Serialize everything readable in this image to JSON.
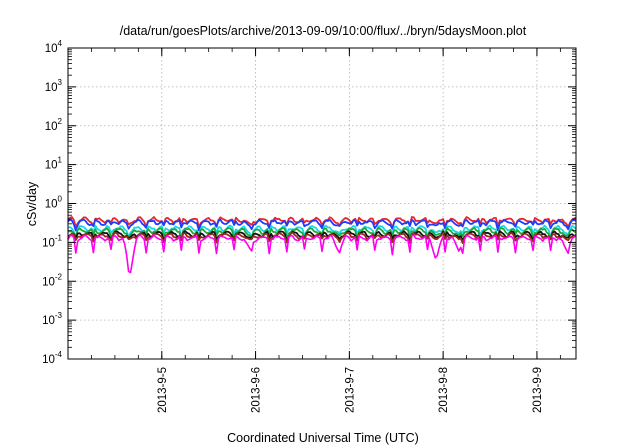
{
  "chart_data": {
    "type": "line",
    "title": "/data/run/goesPlots/archive/2013-09-09/10:00/flux/../bryn/5daysMoon.plot",
    "xlabel": "Coordinated Universal Time (UTC)",
    "ylabel": "cSv/day",
    "yscale": "log",
    "ylim": [
      0.0001,
      10000
    ],
    "xlim": [
      "2013-09-04 00:00",
      "2013-09-09 10:00"
    ],
    "grid": true,
    "y_ticks": [
      {
        "base": "10",
        "exp": "-4",
        "value": 0.0001
      },
      {
        "base": "10",
        "exp": "-3",
        "value": 0.001
      },
      {
        "base": "10",
        "exp": "-2",
        "value": 0.01
      },
      {
        "base": "10",
        "exp": "-1",
        "value": 0.1
      },
      {
        "base": "10",
        "exp": "0",
        "value": 1
      },
      {
        "base": "10",
        "exp": "1",
        "value": 10
      },
      {
        "base": "10",
        "exp": "2",
        "value": 100
      },
      {
        "base": "10",
        "exp": "3",
        "value": 1000
      },
      {
        "base": "10",
        "exp": "4",
        "value": 10000
      }
    ],
    "x_ticks": [
      {
        "label": "2013-9-5",
        "value": "2013-09-05 00:00"
      },
      {
        "label": "2013-9-6",
        "value": "2013-09-06 00:00"
      },
      {
        "label": "2013-9-7",
        "value": "2013-09-07 00:00"
      },
      {
        "label": "2013-9-8",
        "value": "2013-09-08 00:00"
      },
      {
        "label": "2013-9-9",
        "value": "2013-09-09 00:00"
      }
    ],
    "series": [
      {
        "color": "#e8262f",
        "level": 0.38,
        "dips": [
          0.8,
          0.75
        ]
      },
      {
        "color": "#1e3cff",
        "level": 0.33,
        "dips": [
          0.8,
          0.75
        ]
      },
      {
        "color": "#18d8e8",
        "level": 0.23,
        "dips": [
          0.75,
          0.7
        ]
      },
      {
        "color": "#1fa83a",
        "level": 0.2,
        "dips": [
          0.75,
          0.7
        ]
      },
      {
        "color": "#111111",
        "level": 0.165,
        "dips": [
          0.8,
          0.75
        ]
      },
      {
        "color": "#9a2a20",
        "level": 0.15,
        "dips": [
          0.8,
          0.75
        ]
      },
      {
        "color": "#ff00ee",
        "level": 0.13,
        "dips": [
          0.1,
          0.45
        ]
      }
    ],
    "spikes": [
      {
        "t": "2013-09-04 15:50",
        "min": 0.013
      },
      {
        "t": "2013-09-05 22:30",
        "min": 0.07
      },
      {
        "t": "2013-09-06 21:20",
        "min": 0.055
      },
      {
        "t": "2013-09-07 22:10",
        "min": 0.035
      },
      {
        "t": "2013-09-08 04:00",
        "min": 0.06
      },
      {
        "t": "2013-09-09 07:30",
        "min": 0.065
      }
    ]
  }
}
